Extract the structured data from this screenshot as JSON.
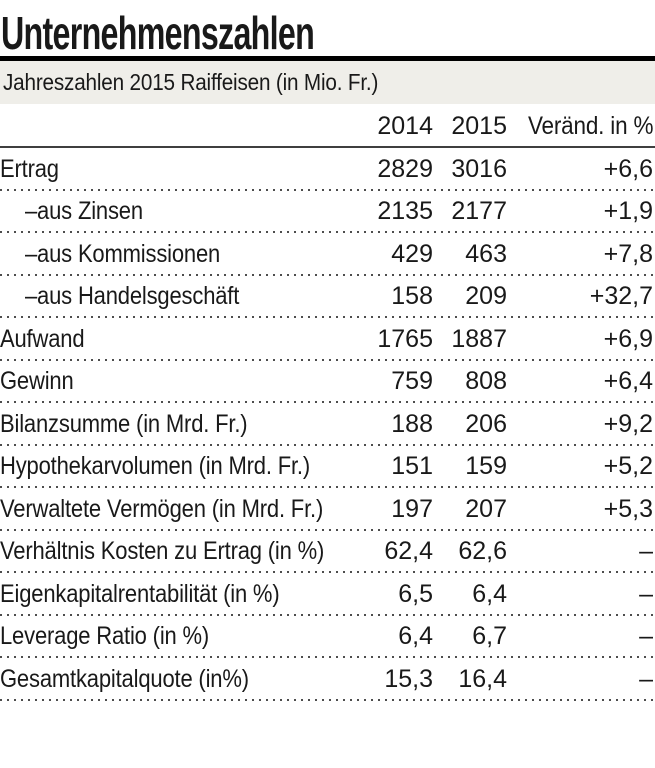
{
  "chart_data": {
    "type": "table",
    "title": "Unternehmenszahlen",
    "subtitle": "Jahreszahlen 2015 Raiffeisen (in Mio. Fr.)",
    "columns": [
      "",
      "2014",
      "2015",
      "Veränd. in %"
    ],
    "rows": [
      {
        "label": "Ertrag",
        "indent": false,
        "y2014": "2829",
        "y2015": "3016",
        "change": "+6,6"
      },
      {
        "label": "–aus Zinsen",
        "indent": true,
        "y2014": "2135",
        "y2015": "2177",
        "change": "+1,9"
      },
      {
        "label": "–aus Kommissionen",
        "indent": true,
        "y2014": "429",
        "y2015": "463",
        "change": "+7,8"
      },
      {
        "label": "–aus Handelsgeschäft",
        "indent": true,
        "y2014": "158",
        "y2015": "209",
        "change": "+32,7"
      },
      {
        "label": "Aufwand",
        "indent": false,
        "y2014": "1765",
        "y2015": "1887",
        "change": "+6,9"
      },
      {
        "label": "Gewinn",
        "indent": false,
        "y2014": "759",
        "y2015": "808",
        "change": "+6,4"
      },
      {
        "label": "Bilanzsumme (in Mrd. Fr.)",
        "indent": false,
        "y2014": "188",
        "y2015": "206",
        "change": "+9,2"
      },
      {
        "label": "Hypothekarvolumen (in Mrd. Fr.)",
        "indent": false,
        "y2014": "151",
        "y2015": "159",
        "change": "+5,2"
      },
      {
        "label": "Verwaltete Vermögen (in Mrd. Fr.)",
        "indent": false,
        "y2014": "197",
        "y2015": "207",
        "change": "+5,3"
      },
      {
        "label": "Verhältnis Kosten zu Ertrag (in %)",
        "indent": false,
        "y2014": "62,4",
        "y2015": "62,6",
        "change": "–"
      },
      {
        "label": "Eigenkapitalrentabilität (in %)",
        "indent": false,
        "y2014": "6,5",
        "y2015": "6,4",
        "change": "–"
      },
      {
        "label": "Leverage Ratio (in %)",
        "indent": false,
        "y2014": "6,4",
        "y2015": "6,7",
        "change": "–"
      },
      {
        "label": "Gesamtkapitalquote (in%)",
        "indent": false,
        "y2014": "15,3",
        "y2015": "16,4",
        "change": "–"
      }
    ],
    "layout": {
      "grid": "off",
      "value_alignment": "right",
      "row_separator": "dotted"
    }
  },
  "colors": {
    "background": "#ffffff",
    "subtitle_bar_bg": "#efeee9",
    "text": "#191919",
    "rule_heavy": "#000000",
    "rule_light": "#3f3f3f",
    "dotted_separator": "#4d4d4d"
  }
}
